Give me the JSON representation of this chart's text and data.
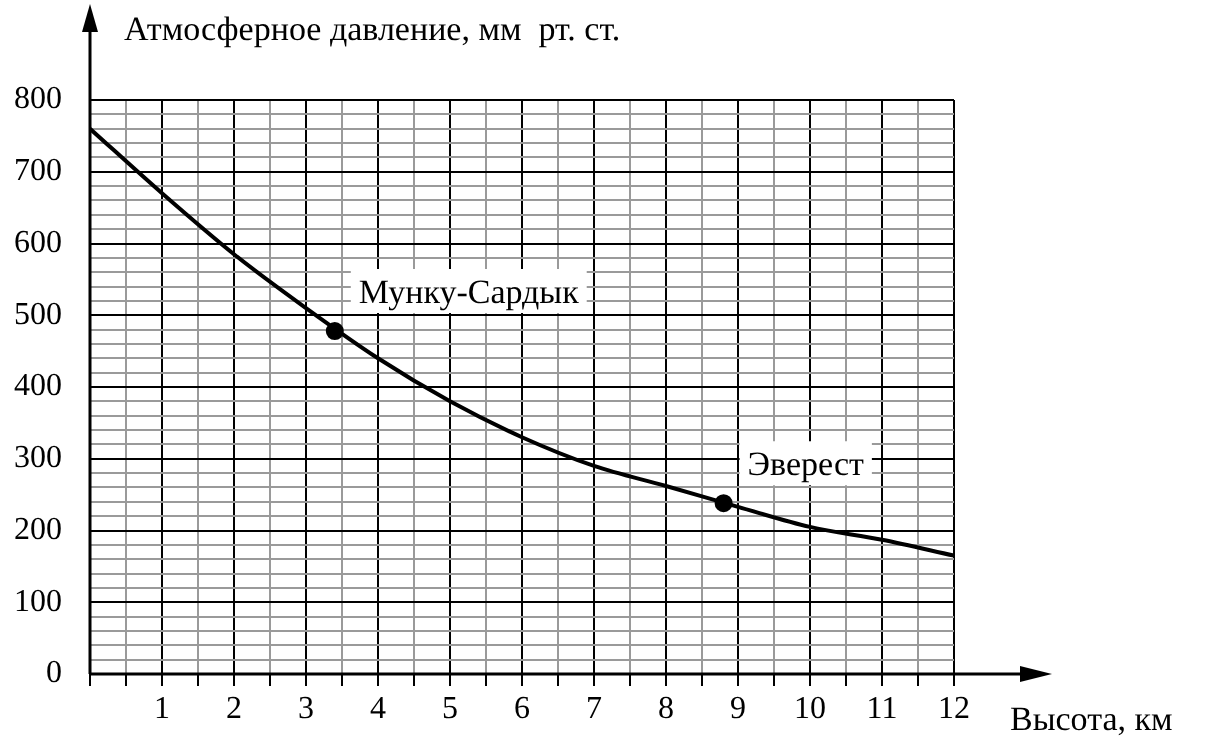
{
  "chart_data": {
    "type": "line",
    "ylabel": "Атмосферное давление, мм  рт. ст.",
    "xlabel": "Высота, км",
    "xlim": [
      0,
      12
    ],
    "xticks": [
      {
        "value": 0,
        "label": null
      },
      {
        "value": 0.5,
        "label": null
      },
      1,
      {
        "value": 1.5,
        "label": null
      },
      2,
      {
        "value": 2.5,
        "label": null
      },
      3,
      {
        "value": 3.5,
        "label": null
      },
      4,
      {
        "value": 4.5,
        "label": null
      },
      5,
      {
        "value": 5.5,
        "label": null
      },
      6,
      {
        "value": 6.5,
        "label": null
      },
      7,
      {
        "value": 7.5,
        "label": null
      },
      8,
      {
        "value": 8.5,
        "label": null
      },
      9,
      {
        "value": 9.5,
        "label": null
      },
      10,
      {
        "value": 10.5,
        "label": null
      },
      11,
      {
        "value": 11.5,
        "label": null
      },
      12
    ],
    "ylim": [
      0,
      800
    ],
    "yticks": [
      0,
      {
        "value": 20,
        "label": null
      },
      {
        "value": 40,
        "label": null
      },
      {
        "value": 60,
        "label": null
      },
      {
        "value": 80,
        "label": null
      },
      100,
      {
        "value": 120,
        "label": null
      },
      {
        "value": 140,
        "label": null
      },
      {
        "value": 160,
        "label": null
      },
      {
        "value": 180,
        "label": null
      },
      200,
      {
        "value": 220,
        "label": null
      },
      {
        "value": 240,
        "label": null
      },
      {
        "value": 260,
        "label": null
      },
      {
        "value": 280,
        "label": null
      },
      300,
      {
        "value": 320,
        "label": null
      },
      {
        "value": 340,
        "label": null
      },
      {
        "value": 360,
        "label": null
      },
      {
        "value": 380,
        "label": null
      },
      400,
      {
        "value": 420,
        "label": null
      },
      {
        "value": 440,
        "label": null
      },
      {
        "value": 460,
        "label": null
      },
      {
        "value": 480,
        "label": null
      },
      500,
      {
        "value": 520,
        "label": null
      },
      {
        "value": 540,
        "label": null
      },
      {
        "value": 560,
        "label": null
      },
      {
        "value": 580,
        "label": null
      },
      600,
      {
        "value": 620,
        "label": null
      },
      {
        "value": 640,
        "label": null
      },
      {
        "value": 660,
        "label": null
      },
      {
        "value": 680,
        "label": null
      },
      700,
      {
        "value": 720,
        "label": null
      },
      {
        "value": 740,
        "label": null
      },
      {
        "value": 760,
        "label": null
      },
      {
        "value": 780,
        "label": null
      },
      800
    ],
    "grid": true,
    "series": [
      {
        "color": "#000000",
        "marker": "none",
        "x": [
          0,
          1,
          2,
          3,
          4,
          5,
          6,
          7,
          8,
          9,
          10,
          11,
          12
        ],
        "values": [
          760,
          670,
          585,
          510,
          440,
          380,
          330,
          290,
          262,
          233,
          205,
          187,
          165
        ]
      },
      {
        "type": "scatter",
        "color": "#000000",
        "marker": "circle",
        "x": [
          3.4,
          8.8
        ],
        "values": [
          478,
          238
        ]
      }
    ],
    "annotations": [
      {
        "text": "Мунку-Сардык",
        "x": 3.4,
        "y": 478
      },
      {
        "text": "Эверест",
        "x": 8.8,
        "y": 238
      }
    ]
  }
}
